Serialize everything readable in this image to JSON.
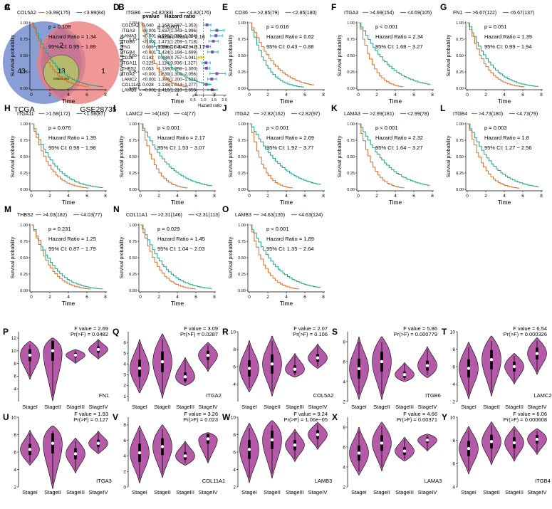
{
  "colors": {
    "venn_left": "#7b93cf",
    "venn_right": "#ec7d7e",
    "venn_center": "#b6b86c",
    "km_high": "#e06b26",
    "km_low": "#19a38a",
    "violin_fill": "#b55aa8",
    "forest_point": "#7a4fb0",
    "forest_ci": "#3cb9c6"
  },
  "panels": {
    "A": "A",
    "B": "B",
    "C": "C",
    "D": "D",
    "E": "E",
    "F": "F",
    "G": "G",
    "H": "H",
    "I": "I",
    "J": "J",
    "K": "K",
    "L": "L",
    "M": "M",
    "N": "N",
    "O": "O",
    "P": "P",
    "Q": "Q",
    "R": "R",
    "S": "S",
    "T": "T",
    "U": "U",
    "V": "V",
    "W": "W",
    "X": "X",
    "Y": "Y"
  },
  "venn": {
    "left_label": "TCGA",
    "right_label": "GSE28735",
    "left_only": "43",
    "overlap": "2",
    "right_only": "1",
    "center": "13",
    "center_sub": "GSE62452"
  },
  "forest": {
    "col_pvalue": "pvalue",
    "col_hr": "Hazard ratio",
    "xlabel": "Hazard ratio",
    "ticks": [
      "0.5",
      "1.0",
      "1.5",
      "2.0"
    ],
    "rows": [
      {
        "gene": "COL5A2",
        "p": "0.040",
        "hr_text": "1.167(1.007~1.353)",
        "hr": 1.167,
        "lo": 1.007,
        "hi": 1.353
      },
      {
        "gene": "ITGA3",
        "p": "<0.001",
        "hr_text": "1.637(1.343~1.996)",
        "hr": 1.637,
        "lo": 1.343,
        "hi": 1.996
      },
      {
        "gene": "LAMA3",
        "p": "<0.001",
        "hr_text": "1.596(1.338~1.904)",
        "hr": 1.596,
        "lo": 1.338,
        "hi": 1.904
      },
      {
        "gene": "ITGB6",
        "p": "<0.001",
        "hr_text": "1.471(1.259~1.718)",
        "hr": 1.471,
        "lo": 1.259,
        "hi": 1.718
      },
      {
        "gene": "FN1",
        "p": "0.006",
        "hr_text": "1.186(1.049~1.341)",
        "hr": 1.186,
        "lo": 1.049,
        "hi": 1.341
      },
      {
        "gene": "ITGB4",
        "p": "<0.001",
        "hr_text": "1.424(1.194~1.699)",
        "hr": 1.424,
        "lo": 1.194,
        "hi": 1.699
      },
      {
        "gene": "CD36",
        "p": "0.142",
        "hr_text": "0.888(0.757~1.041)",
        "hr": 0.888,
        "lo": 0.757,
        "hi": 1.041
      },
      {
        "gene": "ITGA11",
        "p": "0.225",
        "hr_text": "1.114(0.936~1.327)",
        "hr": 1.114,
        "lo": 0.936,
        "hi": 1.327
      },
      {
        "gene": "THBS2",
        "p": "0.053",
        "hr_text": "1.139(0.998~1.300)",
        "hr": 1.139,
        "lo": 0.998,
        "hi": 1.3
      },
      {
        "gene": "ITGA2",
        "p": "<0.001",
        "hr_text": "1.639(1.306~2.056)",
        "hr": 1.639,
        "lo": 1.306,
        "hi": 2.056
      },
      {
        "gene": "LAMC2",
        "p": "<0.001",
        "hr_text": "1.396(1.200~1.624)",
        "hr": 1.396,
        "lo": 1.2,
        "hi": 1.624
      },
      {
        "gene": "COL11A1",
        "p": "0.028",
        "hr_text": "1.138(1.014~1.277)",
        "hr": 1.138,
        "lo": 1.014,
        "hi": 1.277
      },
      {
        "gene": "LAMB3",
        "p": "<0.001",
        "hr_text": "1.416(1.210~1.656)",
        "hr": 1.416,
        "lo": 1.21,
        "hi": 1.656
      }
    ]
  },
  "km_common": {
    "xlabel": "Time",
    "ylabel": "Survival probability",
    "xticks": [
      "0",
      "2",
      "4",
      "6",
      "8"
    ],
    "yticks": [
      "0.00",
      "0.25",
      "0.50",
      "0.75",
      "1.00"
    ],
    "hr_prefix": "Hazard Ratio = ",
    "ci_prefix": "95% CI: "
  },
  "chart_data": [
    {
      "panel": "C",
      "type": "line",
      "title": "COL5A2",
      "legend_high": ">3.99(175)",
      "legend_low": "<3.99(84)",
      "p_text": "p = 0.108",
      "hr": "1.34",
      "ci": "0.95 ~ 1.89",
      "hr_val": 1.34,
      "xlim": [
        0,
        8
      ],
      "ylim": [
        0,
        1
      ]
    },
    {
      "panel": "D",
      "type": "line",
      "title": "ITGB6",
      "legend_high": ">4.82(83)",
      "legend_low": "<4.82(176)",
      "p_text": "p < 0.001",
      "hr": "2.16",
      "ci": "1.47 ~ 3.17",
      "hr_val": 2.16,
      "xlim": [
        0,
        8
      ],
      "ylim": [
        0,
        1
      ]
    },
    {
      "panel": "E",
      "type": "line",
      "title": "CD36",
      "legend_high": ">2.85(79)",
      "legend_low": "<2.85(180)",
      "p_text": "p = 0.016",
      "hr": "0.62",
      "ci": "0.43 ~ 0.88",
      "hr_val": 0.62,
      "xlim": [
        0,
        8
      ],
      "ylim": [
        0,
        1
      ]
    },
    {
      "panel": "F",
      "type": "line",
      "title": "ITGA3",
      "legend_high": ">4.69(154)",
      "legend_low": "<4.69(105)",
      "p_text": "p < 0.001",
      "hr": "2.34",
      "ci": "1.68 ~ 3.27",
      "hr_val": 2.34,
      "xlim": [
        0,
        8
      ],
      "ylim": [
        0,
        1
      ]
    },
    {
      "panel": "G",
      "type": "line",
      "title": "FN1",
      "legend_high": ">6.67(122)",
      "legend_low": "<6.67(137)",
      "p_text": "p = 0.051",
      "hr": "1.39",
      "ci": "0.99 ~ 1.94",
      "hr_val": 1.39,
      "xlim": [
        0,
        8
      ],
      "ylim": [
        0,
        1
      ]
    },
    {
      "panel": "H",
      "type": "line",
      "title": "ITGA11",
      "legend_high": ">1.58(172)",
      "legend_low": "<1.58(87)",
      "p_text": "p = 0.076",
      "hr": "1.39",
      "ci": "0.98 ~ 1.98",
      "hr_val": 1.39,
      "xlim": [
        0,
        8
      ],
      "ylim": [
        0,
        1
      ]
    },
    {
      "panel": "I",
      "type": "line",
      "title": "LAMC2",
      "legend_high": ">4(182)",
      "legend_low": "<4(77)",
      "p_text": "p < 0.001",
      "hr": "2.17",
      "ci": "1.53 ~ 3.07",
      "hr_val": 2.17,
      "xlim": [
        0,
        8
      ],
      "ylim": [
        0,
        1
      ]
    },
    {
      "panel": "J",
      "type": "line",
      "title": "ITGA2",
      "legend_high": ">2.82(162)",
      "legend_low": "<2.82(97)",
      "p_text": "p < 0.001",
      "hr": "2.69",
      "ci": "1.92 ~ 3.77",
      "hr_val": 2.69,
      "xlim": [
        0,
        8
      ],
      "ylim": [
        0,
        1
      ]
    },
    {
      "panel": "K",
      "type": "line",
      "title": "LAMA3",
      "legend_high": ">2.99(181)",
      "legend_low": "<2.99(78)",
      "p_text": "p < 0.001",
      "hr": "2.32",
      "ci": "1.64 ~ 3.27",
      "hr_val": 2.32,
      "xlim": [
        0,
        8
      ],
      "ylim": [
        0,
        1
      ]
    },
    {
      "panel": "L",
      "type": "line",
      "title": "ITGB4",
      "legend_high": ">4.73(180)",
      "legend_low": "<4.73(79)",
      "p_text": "p = 0.003",
      "hr": "1.8",
      "ci": "1.27 ~ 2.56",
      "hr_val": 1.8,
      "xlim": [
        0,
        8
      ],
      "ylim": [
        0,
        1
      ]
    },
    {
      "panel": "M",
      "type": "line",
      "title": "THBS2",
      "legend_high": ">4.03(182)",
      "legend_low": "<4.03(77)",
      "p_text": "p = 0.231",
      "hr": "1.25",
      "ci": "0.87 ~ 1.79",
      "hr_val": 1.25,
      "xlim": [
        0,
        8
      ],
      "ylim": [
        0,
        1
      ]
    },
    {
      "panel": "N",
      "type": "line",
      "title": "COL11A1",
      "legend_high": ">2.31(146)",
      "legend_low": "<2.31(113)",
      "p_text": "p = 0.029",
      "hr": "1.45",
      "ci": "1.04 ~ 2.03",
      "hr_val": 1.45,
      "xlim": [
        0,
        8
      ],
      "ylim": [
        0,
        1
      ]
    },
    {
      "panel": "O",
      "type": "line",
      "title": "LAMB3",
      "legend_high": ">4.63(135)",
      "legend_low": "<4.63(124)",
      "p_text": "p < 0.001",
      "hr": "1.89",
      "ci": "1.35 ~ 2.64",
      "hr_val": 1.89,
      "xlim": [
        0,
        8
      ],
      "ylim": [
        0,
        1
      ]
    },
    {
      "panel": "P",
      "type": "violin",
      "gene": "FN1",
      "f_text": "F value = 2.69",
      "p_text": "Pr(>F) = 0.0482",
      "categories": [
        "StageI",
        "StageII",
        "StageIII",
        "StageIV"
      ],
      "medians": [
        9.3,
        10.0,
        9.3,
        10.2
      ],
      "mins": [
        5.5,
        2.1,
        8.0,
        8.7
      ],
      "maxs": [
        11.5,
        12.0,
        10.2,
        11.8
      ],
      "ylim": [
        2,
        13
      ],
      "yticks": [
        4,
        6,
        8,
        10,
        12
      ]
    },
    {
      "panel": "Q",
      "type": "violin",
      "gene": "ITGA2",
      "f_text": "F value = 3.09",
      "p_text": "Pr(>F) = 0.0287",
      "categories": [
        "StageI",
        "StageII",
        "StageIII",
        "StageIV"
      ],
      "medians": [
        3.6,
        4.2,
        2.8,
        4.8
      ],
      "mins": [
        1.3,
        0.8,
        2.0,
        3.3
      ],
      "maxs": [
        6.3,
        6.8,
        4.6,
        6.0
      ],
      "ylim": [
        0.5,
        7
      ],
      "yticks": [
        1,
        2,
        3,
        4,
        5,
        6
      ]
    },
    {
      "panel": "R",
      "type": "violin",
      "gene": "COL5A2",
      "f_text": "F value = 2.07",
      "p_text": "Pr(>F) = 0.106",
      "categories": [
        "StageI",
        "StageII",
        "StageIII",
        "StageIV"
      ],
      "medians": [
        5.8,
        6.3,
        5.7,
        7.0
      ],
      "mins": [
        3.1,
        2.6,
        4.8,
        5.8
      ],
      "maxs": [
        9.0,
        9.5,
        7.5,
        8.6
      ],
      "ylim": [
        2,
        10
      ],
      "yticks": [
        4,
        6,
        8,
        10
      ]
    },
    {
      "panel": "S",
      "type": "violin",
      "gene": "ITGB6",
      "f_text": "F value = 5.86",
      "p_text": "Pr(>F) = 0.000779",
      "categories": [
        "StageI",
        "StageII",
        "StageIII",
        "StageIV"
      ],
      "medians": [
        5.3,
        6.0,
        4.7,
        5.6
      ],
      "mins": [
        2.2,
        2.2,
        4.0,
        4.4
      ],
      "maxs": [
        8.5,
        8.5,
        5.9,
        7.5
      ],
      "ylim": [
        2,
        9
      ],
      "yticks": [
        2,
        4,
        6,
        8
      ]
    },
    {
      "panel": "T",
      "type": "violin",
      "gene": "LAMC2",
      "f_text": "F value = 6.54",
      "p_text": "Pr(>F) = 0.000326",
      "categories": [
        "StageI",
        "StageII",
        "StageIII",
        "StageIV"
      ],
      "medians": [
        5.8,
        6.8,
        6.0,
        7.5
      ],
      "mins": [
        2.3,
        2.6,
        4.0,
        5.1
      ],
      "maxs": [
        8.8,
        9.5,
        7.5,
        9.3
      ],
      "ylim": [
        2,
        10
      ],
      "yticks": [
        2,
        4,
        6,
        8,
        10
      ]
    },
    {
      "panel": "U",
      "type": "violin",
      "gene": "ITGA3",
      "f_text": "F value = 1.93",
      "p_text": "Pr(>F) = 0.127",
      "categories": [
        "StageI",
        "StageII",
        "StageIII",
        "StageIV"
      ],
      "medians": [
        6.3,
        7.0,
        5.8,
        7.0
      ],
      "mins": [
        4.5,
        1.8,
        3.6,
        5.8
      ],
      "maxs": [
        8.5,
        9.0,
        7.6,
        8.4
      ],
      "ylim": [
        2,
        10
      ],
      "yticks": [
        2,
        4,
        6,
        8,
        10
      ]
    },
    {
      "panel": "V",
      "type": "violin",
      "gene": "COL11A1",
      "f_text": "F value = 3.26",
      "p_text": "Pr(>F) = 0.023",
      "categories": [
        "StageI",
        "StageII",
        "StageIII",
        "StageIV"
      ],
      "medians": [
        4.4,
        5.2,
        4.0,
        6.2
      ],
      "mins": [
        0.5,
        1.2,
        2.8,
        3.1
      ],
      "maxs": [
        7.9,
        8.0,
        5.9,
        7.0
      ],
      "ylim": [
        0,
        9
      ],
      "yticks": [
        0,
        2,
        4,
        6,
        8
      ]
    },
    {
      "panel": "W",
      "type": "violin",
      "gene": "LAMB3",
      "f_text": "F value = 9.24",
      "p_text": "Pr(>F) = 1.06e−05",
      "categories": [
        "StageI",
        "StageII",
        "StageIII",
        "StageIV"
      ],
      "medians": [
        6.3,
        7.4,
        6.8,
        8.0
      ],
      "mins": [
        2.5,
        3.0,
        4.9,
        6.3
      ],
      "maxs": [
        9.3,
        9.6,
        8.6,
        9.4
      ],
      "ylim": [
        2,
        10
      ],
      "yticks": [
        2,
        4,
        6,
        8,
        10
      ]
    },
    {
      "panel": "X",
      "type": "violin",
      "gene": "LAMA3",
      "f_text": "F value = 4.66",
      "p_text": "Pr(>F) = 0.00371",
      "categories": [
        "StageI",
        "StageII",
        "StageIII",
        "StageIV"
      ],
      "medians": [
        5.4,
        6.4,
        5.6,
        6.7
      ],
      "mins": [
        3.2,
        3.6,
        4.6,
        5.6
      ],
      "maxs": [
        8.0,
        8.5,
        7.0,
        7.3
      ],
      "ylim": [
        2,
        9
      ],
      "yticks": [
        2,
        4,
        6,
        8
      ]
    },
    {
      "panel": "Y",
      "type": "violin",
      "gene": "ITGB4",
      "f_text": "F value = 6.06",
      "p_text": "Pr(>F) = 0.000608",
      "categories": [
        "StageI",
        "StageII",
        "StageIII",
        "StageIV"
      ],
      "medians": [
        7.3,
        7.9,
        7.8,
        8.1
      ],
      "mins": [
        5.1,
        5.9,
        6.2,
        6.8
      ],
      "maxs": [
        9.2,
        9.6,
        9.2,
        9.0
      ],
      "ylim": [
        4,
        10
      ],
      "yticks": [
        4,
        6,
        8,
        10
      ]
    }
  ]
}
